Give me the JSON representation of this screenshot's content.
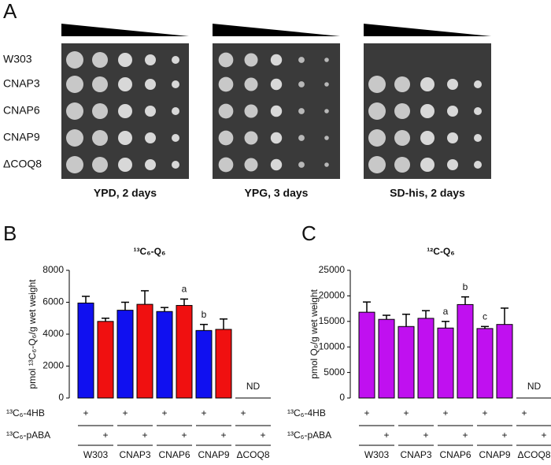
{
  "panel_a": {
    "letter": "A",
    "strains": [
      "W303",
      "CNAP3",
      "CNAP6",
      "CNAP9",
      "ΔCOQ8"
    ],
    "conditions": [
      "YPD, 2 days",
      "YPG, 3 days",
      "SD-his, 2 days"
    ]
  },
  "chart_data": [
    {
      "type": "bar",
      "letter": "B",
      "title": "¹³C₆-Q₆",
      "y_label": "pmol ¹³C₆-Q₆/g wet weight",
      "categories": [
        "W303",
        "CNAP3",
        "CNAP6",
        "CNAP9",
        "ΔCOQ8"
      ],
      "series": [
        {
          "name": "¹³C₆-4HB",
          "color": "#1010f0",
          "values": [
            5950,
            5500,
            5420,
            4230,
            null
          ],
          "errors": [
            420,
            500,
            250,
            380,
            null
          ]
        },
        {
          "name": "¹³C₆-pABA",
          "color": "#f01010",
          "values": [
            4800,
            5870,
            5800,
            4300,
            null
          ],
          "errors": [
            200,
            850,
            400,
            650,
            null
          ]
        }
      ],
      "marker": "+",
      "annotations": [
        {
          "text": "a",
          "series": 1,
          "index": 2
        },
        {
          "text": "b",
          "series": 0,
          "index": 3
        },
        {
          "text": "ND",
          "index": 4
        }
      ],
      "ylim": [
        0,
        8000
      ],
      "yticks": [
        0,
        2000,
        4000,
        6000,
        8000
      ]
    },
    {
      "type": "bar",
      "letter": "C",
      "title": "¹²C-Q₆",
      "y_label": "pmol Q₆/g wet weight",
      "categories": [
        "W303",
        "CNAP3",
        "CNAP6",
        "CNAP9",
        "ΔCOQ8"
      ],
      "series": [
        {
          "name": "¹³C₆-4HB",
          "color": "#c010f0",
          "values": [
            16800,
            14000,
            13700,
            13600,
            null
          ],
          "errors": [
            2000,
            2400,
            1300,
            400,
            null
          ]
        },
        {
          "name": "¹³C₆-pABA",
          "color": "#c010f0",
          "values": [
            15400,
            15600,
            18300,
            14400,
            null
          ],
          "errors": [
            800,
            1500,
            1500,
            3200,
            null
          ]
        }
      ],
      "marker": "+",
      "annotations": [
        {
          "text": "a",
          "series": 0,
          "index": 2
        },
        {
          "text": "b",
          "series": 1,
          "index": 2
        },
        {
          "text": "c",
          "series": 0,
          "index": 3
        },
        {
          "text": "ND",
          "index": 4
        }
      ],
      "ylim": [
        0,
        25000
      ],
      "yticks": [
        0,
        5000,
        10000,
        15000,
        20000,
        25000
      ]
    }
  ]
}
